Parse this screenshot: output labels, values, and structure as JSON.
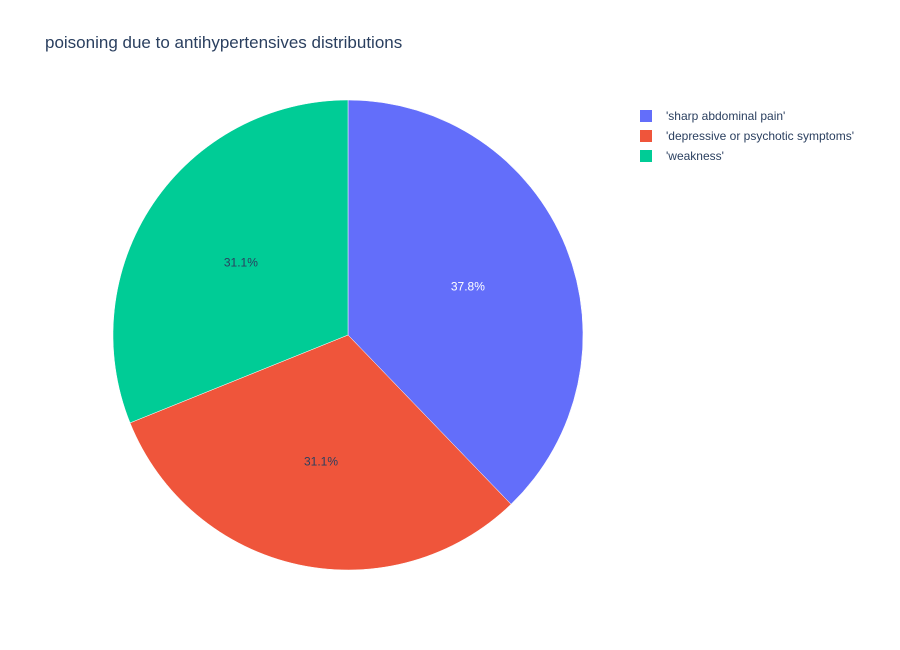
{
  "chart_data": {
    "type": "pie",
    "title": "poisoning due to antihypertensives distributions",
    "labels": [
      "'sharp abdominal pain'",
      "'depressive or psychotic symptoms'",
      "'weakness'"
    ],
    "values": [
      37.8,
      31.1,
      31.1
    ],
    "percent_labels": [
      "37.8%",
      "31.1%",
      "31.1%"
    ],
    "colors": [
      "#636efa",
      "#EF553B",
      "#00cc96"
    ],
    "label_colors": [
      "#ffffff",
      "#2a3f5f",
      "#2a3f5f"
    ],
    "direction": "clockwise",
    "start": "top",
    "legend_position": "top-right"
  }
}
